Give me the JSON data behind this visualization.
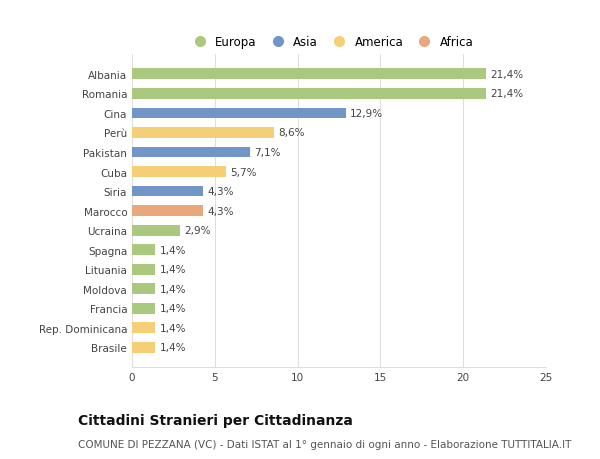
{
  "categories": [
    "Albania",
    "Romania",
    "Cina",
    "Perù",
    "Pakistan",
    "Cuba",
    "Siria",
    "Marocco",
    "Ucraina",
    "Spagna",
    "Lituania",
    "Moldova",
    "Francia",
    "Rep. Dominicana",
    "Brasile"
  ],
  "values": [
    21.4,
    21.4,
    12.9,
    8.6,
    7.1,
    5.7,
    4.3,
    4.3,
    2.9,
    1.4,
    1.4,
    1.4,
    1.4,
    1.4,
    1.4
  ],
  "labels": [
    "21,4%",
    "21,4%",
    "12,9%",
    "8,6%",
    "7,1%",
    "5,7%",
    "4,3%",
    "4,3%",
    "2,9%",
    "1,4%",
    "1,4%",
    "1,4%",
    "1,4%",
    "1,4%",
    "1,4%"
  ],
  "continents": [
    "Europa",
    "Europa",
    "Asia",
    "America",
    "Asia",
    "America",
    "Asia",
    "Africa",
    "Europa",
    "Europa",
    "Europa",
    "Europa",
    "Europa",
    "America",
    "America"
  ],
  "continent_colors": {
    "Europa": "#aac97e",
    "Asia": "#7295c8",
    "America": "#f5cf78",
    "Africa": "#e8a87c"
  },
  "legend_order": [
    "Europa",
    "Asia",
    "America",
    "Africa"
  ],
  "title": "Cittadini Stranieri per Cittadinanza",
  "subtitle": "COMUNE DI PEZZANA (VC) - Dati ISTAT al 1° gennaio di ogni anno - Elaborazione TUTTITALIA.IT",
  "xlim": [
    0,
    25
  ],
  "xticks": [
    0,
    5,
    10,
    15,
    20,
    25
  ],
  "background_color": "#ffffff",
  "grid_color": "#dddddd",
  "bar_height": 0.55,
  "title_fontsize": 10,
  "subtitle_fontsize": 7.5,
  "label_fontsize": 7.5,
  "tick_fontsize": 7.5,
  "legend_fontsize": 8.5
}
